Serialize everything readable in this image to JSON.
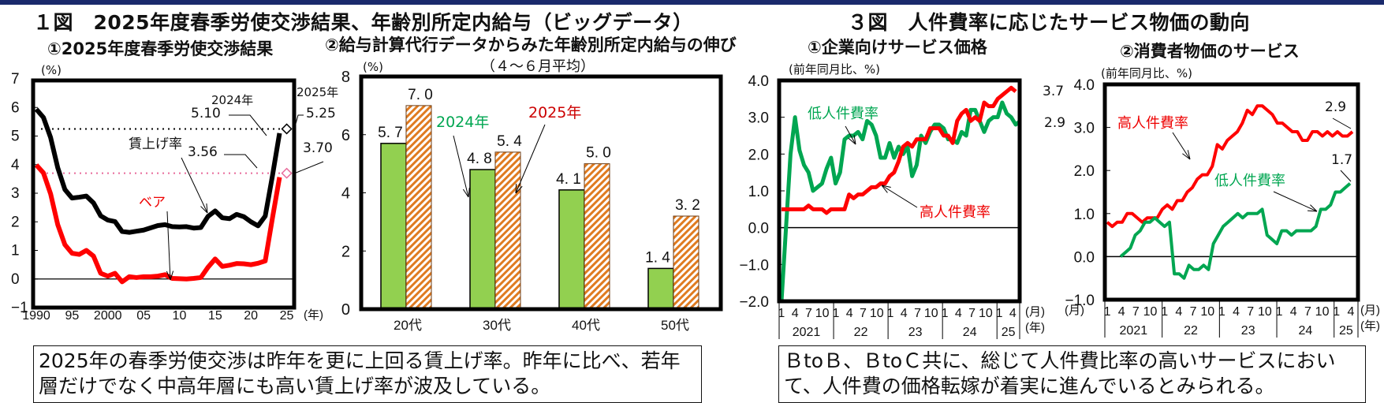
{
  "header": {
    "fig1_title": "１図　2025年度春季労使交渉結果、年齢別所定内給与（ビッグデータ）",
    "fig3_title": "３図　人件費率に応じたサービス物価の動向"
  },
  "panels": {
    "p1": {
      "title": "①2025年度春季労使交渉結果",
      "unit": "(%)",
      "x_unit": "(年)"
    },
    "p2": {
      "title": "②給与計算代行データからみた年齢別所定内給与の伸び",
      "subtitle": "（４～６月平均）",
      "unit": "(%)"
    },
    "p3": {
      "title": "①企業向けサービス価格",
      "unit": "(前年同月比、%)",
      "x_unit_month": "(月)",
      "x_unit_year": "(年)"
    },
    "p4": {
      "title": "②消費者物価のサービス",
      "unit": "(前年同月比、%)",
      "x_unit_month": "(月)",
      "x_unit_year": "(年)"
    }
  },
  "annotations": {
    "p1": {
      "label_2024": "2024年",
      "val_2024_wage": "5.10",
      "val_2024_base": "3.56",
      "label_2025": "2025年",
      "val_2025_wage": "5.25",
      "val_2025_base": "3.70",
      "wage_series_label": "賃上げ率",
      "base_series_label": "ベア"
    },
    "p2": {
      "legend_2024": "2024年",
      "legend_2025": "2025年"
    },
    "p3": {
      "low_label": "低人件費率",
      "high_label": "高人件費率",
      "end_high": "3.7",
      "end_low": "2.9"
    },
    "p4": {
      "low_label": "低人件費率",
      "high_label": "高人件費率",
      "end_high": "2.9",
      "end_low": "1.7"
    }
  },
  "notes": {
    "left": "2025年の春季労使交渉は昨年を更に上回る賃上げ率。昨年に比べ、若年層だけでなく中高年層にも高い賃上げ率が波及している。",
    "right": "ＢtoＢ、ＢtoＣ共に、総じて人件費比率の高いサービスにおいて、人件費の価格転嫁が着実に進んでいるとみられる。"
  },
  "colors": {
    "black": "#000000",
    "red": "#ff0000",
    "green": "#00a651",
    "bar_green": "#92d050",
    "bar_orange": "#e07b20",
    "pink": "#e86a9a",
    "label_red": "#cc0000",
    "label_green": "#00a651",
    "navy": "#1a2a6c"
  },
  "chart_data": [
    {
      "type": "line",
      "title": "①2025年度春季労使交渉結果",
      "xlabel": "(年)",
      "ylabel": "(%)",
      "ylim": [
        -1,
        7
      ],
      "yticks": [
        "7",
        "6",
        "5",
        "4",
        "3",
        "2",
        "1",
        "0",
        "−1"
      ],
      "xticks": [
        "1990",
        "95",
        "2000",
        "05",
        "10",
        "15",
        "20",
        "25"
      ],
      "x": [
        1990,
        1991,
        1992,
        1993,
        1994,
        1995,
        1996,
        1997,
        1998,
        1999,
        2000,
        2001,
        2002,
        2003,
        2004,
        2005,
        2006,
        2007,
        2008,
        2009,
        2010,
        2011,
        2012,
        2013,
        2014,
        2015,
        2016,
        2017,
        2018,
        2019,
        2020,
        2021,
        2022,
        2023,
        2024,
        2025
      ],
      "series": [
        {
          "name": "賃上げ率",
          "color": "#000000",
          "values": [
            5.94,
            5.65,
            4.95,
            3.89,
            3.13,
            2.83,
            2.86,
            2.9,
            2.66,
            2.21,
            2.06,
            2.01,
            1.66,
            1.63,
            1.67,
            1.71,
            1.79,
            1.87,
            1.9,
            1.83,
            1.82,
            1.83,
            1.78,
            1.8,
            2.19,
            2.38,
            2.14,
            2.11,
            2.26,
            2.18,
            2.0,
            1.86,
            2.2,
            3.6,
            5.1,
            5.25
          ]
        },
        {
          "name": "ベア",
          "color": "#ff0000",
          "values": [
            3.99,
            3.71,
            2.98,
            1.9,
            1.2,
            0.9,
            0.86,
            1.0,
            0.8,
            0.2,
            0.1,
            0.2,
            -0.1,
            0.08,
            0.05,
            0.08,
            0.08,
            0.1,
            0.15,
            0.02,
            0.01,
            0.0,
            0.02,
            0.05,
            0.41,
            0.7,
            0.44,
            0.48,
            0.54,
            0.53,
            0.5,
            0.55,
            0.63,
            2.12,
            3.56,
            3.7
          ]
        }
      ],
      "reference_lines": [
        {
          "value": 5.25,
          "style": "dotted",
          "color": "#000000"
        },
        {
          "value": 3.7,
          "style": "dotted",
          "color": "#e86a9a"
        }
      ],
      "point_labels": {
        "2024_wage": 5.1,
        "2024_base": 3.56,
        "2025_wage": 5.25,
        "2025_base": 3.7
      }
    },
    {
      "type": "bar",
      "title": "②給与計算代行データからみた年齢別所定内給与の伸び（４～６月平均）",
      "ylabel": "(%)",
      "ylim": [
        0,
        8
      ],
      "yticks": [
        "8",
        "6",
        "4",
        "2",
        "0"
      ],
      "categories": [
        "20代",
        "30代",
        "40代",
        "50代"
      ],
      "series": [
        {
          "name": "2024年",
          "color": "#92d050",
          "values": [
            5.7,
            4.8,
            4.1,
            1.4
          ]
        },
        {
          "name": "2025年",
          "color": "#e07b20",
          "pattern": "hatched",
          "values": [
            7.0,
            5.4,
            5.0,
            3.2
          ]
        }
      ]
    },
    {
      "type": "line",
      "title": "①企業向けサービス価格",
      "ylabel": "(前年同月比、%)",
      "ylim": [
        -2.0,
        4.0
      ],
      "yticks": [
        "4.0",
        "3.0",
        "2.0",
        "1.0",
        "0.0",
        "−1.0",
        "−2.0"
      ],
      "x_month_ticks": [
        "1",
        "4",
        "7",
        "10"
      ],
      "x_years": [
        "2021",
        "22",
        "23",
        "24",
        "25"
      ],
      "x_last_months": [
        "1",
        "4",
        "5"
      ],
      "series": [
        {
          "name": "低人件費率",
          "color": "#00a651",
          "values": [
            -2.0,
            0.0,
            2.0,
            3.0,
            2.1,
            1.7,
            1.5,
            1.0,
            1.1,
            1.2,
            1.6,
            1.9,
            1.2,
            1.5,
            2.4,
            2.5,
            2.5,
            2.6,
            2.4,
            2.9,
            2.8,
            2.5,
            1.9,
            1.9,
            2.3,
            1.9,
            2.2,
            2.0,
            2.2,
            1.4,
            1.7,
            2.5,
            2.3,
            2.6,
            2.8,
            2.8,
            2.7,
            2.4,
            2.4,
            2.3,
            2.6,
            2.5,
            3.2,
            3.2,
            2.9,
            2.6,
            2.9,
            3.0,
            3.0,
            3.4,
            3.1,
            3.0,
            2.8,
            2.9
          ]
        },
        {
          "name": "高人件費率",
          "color": "#ff0000",
          "values": [
            0.5,
            0.5,
            0.5,
            0.5,
            0.5,
            0.5,
            0.6,
            0.5,
            0.5,
            0.5,
            0.4,
            0.5,
            0.5,
            0.5,
            0.5,
            0.9,
            0.8,
            0.9,
            0.9,
            1.0,
            1.1,
            1.1,
            1.2,
            1.2,
            1.4,
            1.5,
            1.8,
            2.2,
            2.3,
            2.2,
            2.4,
            2.4,
            2.4,
            2.7,
            2.7,
            2.7,
            2.5,
            2.5,
            2.3,
            2.9,
            3.1,
            3.2,
            2.9,
            3.0,
            2.9,
            3.4,
            3.3,
            3.3,
            3.5,
            3.6,
            3.7,
            3.8,
            3.7
          ]
        }
      ],
      "end_labels": {
        "高人件費率": 3.7,
        "低人件費率": 2.9
      }
    },
    {
      "type": "line",
      "title": "②消費者物価のサービス",
      "ylabel": "(前年同月比、%)",
      "ylim": [
        -1.0,
        4.0
      ],
      "yticks": [
        "4.0",
        "3.0",
        "2.0",
        "1.0",
        "0.0",
        "−1.0"
      ],
      "x_month_ticks": [
        "1",
        "4",
        "7",
        "10"
      ],
      "x_years": [
        "2021",
        "22",
        "23",
        "24",
        "25"
      ],
      "x_last_months": [
        "1",
        "4",
        "5"
      ],
      "series": [
        {
          "name": "高人件費率",
          "color": "#ff0000",
          "values": [
            0.8,
            0.7,
            0.8,
            0.8,
            1.0,
            1.0,
            0.9,
            0.8,
            0.9,
            0.9,
            0.9,
            1.1,
            1.2,
            1.1,
            1.3,
            1.3,
            1.5,
            1.6,
            1.8,
            1.9,
            1.9,
            2.1,
            2.6,
            2.5,
            2.7,
            2.8,
            2.9,
            3.1,
            3.4,
            3.3,
            3.5,
            3.5,
            3.4,
            3.3,
            3.1,
            3.1,
            3.0,
            2.9,
            2.9,
            2.7,
            2.7,
            2.9,
            2.9,
            2.8,
            2.9,
            2.8,
            2.9,
            2.8,
            2.8,
            2.9
          ]
        },
        {
          "name": "低人件費率",
          "color": "#00a651",
          "values": [
            0.0,
            0.1,
            0.2,
            0.5,
            0.6,
            0.8,
            0.8,
            0.9,
            0.8,
            0.7,
            0.8,
            -0.4,
            -0.4,
            -0.5,
            -0.2,
            -0.3,
            -0.3,
            -0.2,
            -0.3,
            0.3,
            0.5,
            0.7,
            0.8,
            0.9,
            1.0,
            0.9,
            1.0,
            1.0,
            1.0,
            1.1,
            0.5,
            0.4,
            0.3,
            0.6,
            0.6,
            0.5,
            0.6,
            0.6,
            0.6,
            0.6,
            0.7,
            1.1,
            1.1,
            1.2,
            1.5,
            1.5,
            1.6,
            1.7
          ]
        }
      ],
      "end_labels": {
        "高人件費率": 2.9,
        "低人件費率": 1.7
      }
    }
  ]
}
